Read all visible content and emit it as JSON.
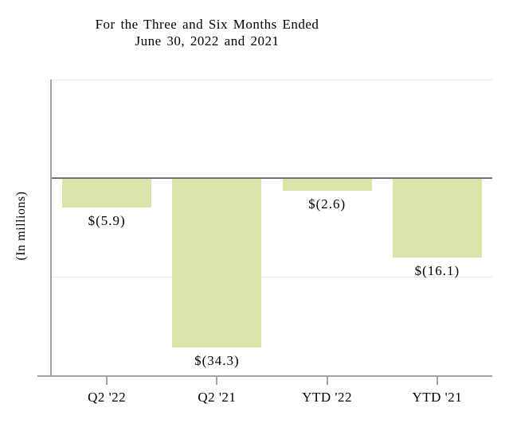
{
  "title": {
    "line1": "For the Three and Six Months Ended",
    "line2": "June 30, 2022 and 2021"
  },
  "chart_data": {
    "type": "bar",
    "title": "For the Three and Six Months Ended June 30, 2022 and 2021",
    "ylabel": "(In millions)",
    "xlabel": "",
    "categories": [
      "Q2 '22",
      "Q2 '21",
      "YTD '22",
      "YTD '21"
    ],
    "values": [
      -5.9,
      -34.3,
      -2.6,
      -16.1
    ],
    "value_labels": [
      "$(5.9)",
      "$(34.3)",
      "$(2.6)",
      "$(16.1)"
    ],
    "ylim": [
      -40,
      20
    ],
    "gridline_values": [
      20,
      -20
    ],
    "zero_line": 0,
    "grid": "on",
    "legend": "none",
    "y_tick_labels_visible": false,
    "colors": {
      "bar_fill": "#dbe4aa",
      "zero_line": "#707070",
      "axis": "#a3a3a3",
      "gridline": "#e7e7e7",
      "text": "#000000",
      "background": "#ffffff"
    }
  }
}
